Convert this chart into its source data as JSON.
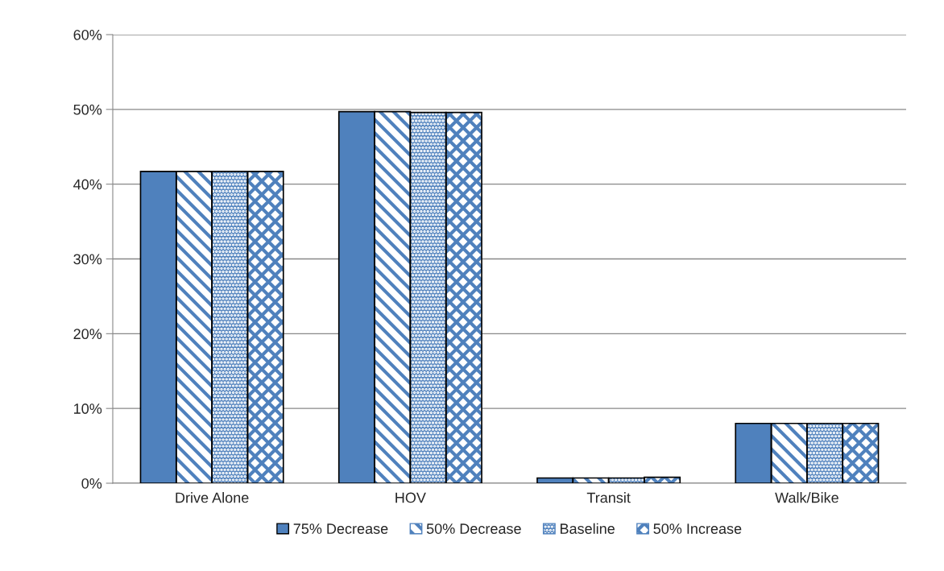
{
  "chart_data": {
    "type": "bar",
    "categories": [
      "Drive Alone",
      "HOV",
      "Transit",
      "Walk/Bike"
    ],
    "series": [
      {
        "name": "75% Decrease",
        "color": "#4f81bd",
        "values": [
          41.7,
          49.7,
          0.7,
          8.0
        ]
      },
      {
        "name": "50% Decrease",
        "color": "#4f81bd",
        "values": [
          41.7,
          49.7,
          0.7,
          8.0
        ]
      },
      {
        "name": "Baseline",
        "color": "#4f81bd",
        "values": [
          41.7,
          49.6,
          0.7,
          8.0
        ]
      },
      {
        "name": "50% Increase",
        "color": "#4f81bd",
        "values": [
          41.7,
          49.6,
          0.8,
          8.0
        ]
      }
    ],
    "ylim": [
      0,
      60
    ],
    "yticks": [
      {
        "value": 0,
        "label": "0%"
      },
      {
        "value": 10,
        "label": "10%"
      },
      {
        "value": 20,
        "label": "20%"
      },
      {
        "value": 30,
        "label": "30%"
      },
      {
        "value": 40,
        "label": "40%"
      },
      {
        "value": 50,
        "label": "50%"
      },
      {
        "value": 60,
        "label": "60%"
      }
    ],
    "grid": "y",
    "legend": "bottom"
  }
}
